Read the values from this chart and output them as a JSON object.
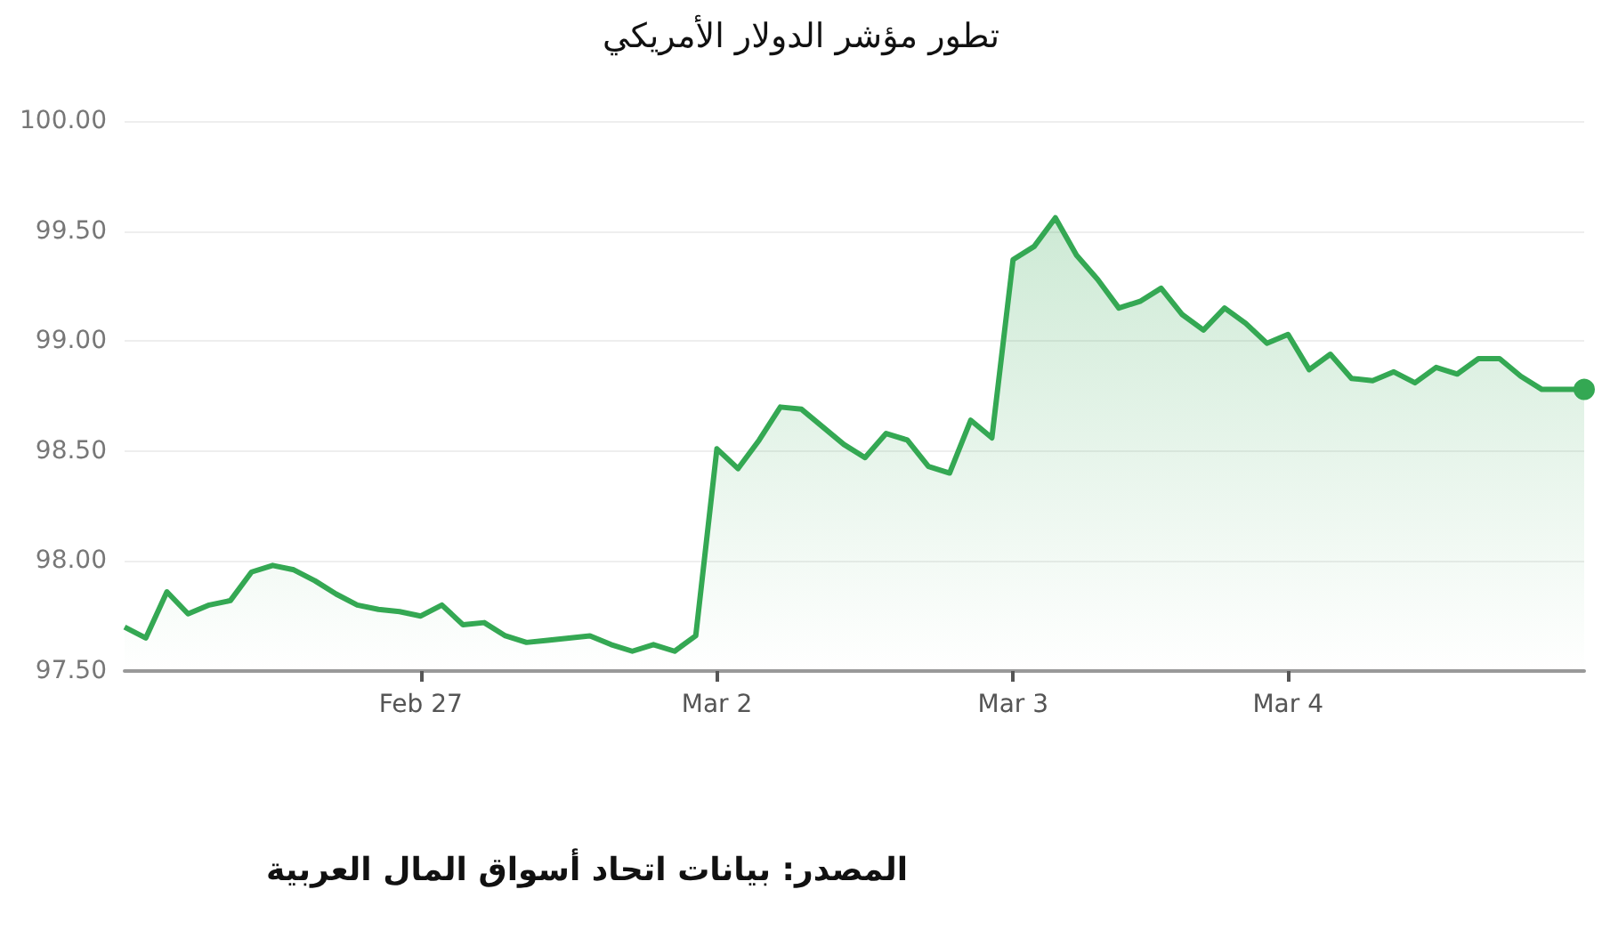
{
  "chart_data": {
    "type": "area",
    "title": "تطور مؤشر الدولار الأمريكي",
    "annotations": [
      "المصدر: بيانات اتحاد أسواق المال العربية"
    ],
    "categories": [
      null,
      null,
      null,
      null,
      null,
      null,
      null,
      null,
      null,
      null,
      null,
      null,
      null,
      null,
      "Feb 27",
      null,
      null,
      null,
      null,
      null,
      null,
      null,
      null,
      null,
      null,
      null,
      null,
      null,
      "Mar 2",
      null,
      null,
      null,
      null,
      null,
      null,
      null,
      null,
      null,
      null,
      null,
      null,
      null,
      "Mar 3",
      null,
      null,
      null,
      null,
      null,
      null,
      null,
      null,
      null,
      null,
      null,
      null,
      "Mar 4",
      null,
      null,
      null,
      null,
      null,
      null,
      null,
      null,
      null,
      null,
      null,
      null,
      null,
      null
    ],
    "series": [
      {
        "color": "#34a853",
        "values": [
          97.7,
          97.65,
          97.86,
          97.76,
          97.8,
          97.82,
          97.95,
          97.98,
          97.96,
          97.91,
          97.85,
          97.8,
          97.78,
          97.77,
          97.75,
          97.8,
          97.71,
          97.72,
          97.66,
          97.63,
          97.64,
          97.65,
          97.66,
          97.62,
          97.59,
          97.62,
          97.59,
          97.66,
          98.51,
          98.42,
          98.55,
          98.7,
          98.69,
          98.61,
          98.53,
          98.47,
          98.58,
          98.55,
          98.43,
          98.4,
          98.64,
          98.56,
          99.37,
          99.43,
          99.56,
          99.39,
          99.28,
          99.15,
          99.18,
          99.24,
          99.12,
          99.05,
          99.15,
          99.08,
          98.99,
          99.03,
          98.87,
          98.94,
          98.83,
          98.82,
          98.86,
          98.81,
          98.88,
          98.85,
          98.92,
          98.92,
          98.84,
          98.78,
          98.78,
          98.78
        ]
      }
    ],
    "ylim": [
      97.5,
      100
    ],
    "yticks": [
      {
        "value": 97.5,
        "label": "97.50"
      },
      {
        "value": 98,
        "label": "98.00"
      },
      {
        "value": 98.5,
        "label": "98.50"
      },
      {
        "value": 99,
        "label": "99.00"
      },
      {
        "value": 99.5,
        "label": "99.50"
      },
      {
        "value": 100,
        "label": "100.00"
      }
    ],
    "grid": "y",
    "line_style": "solid"
  }
}
